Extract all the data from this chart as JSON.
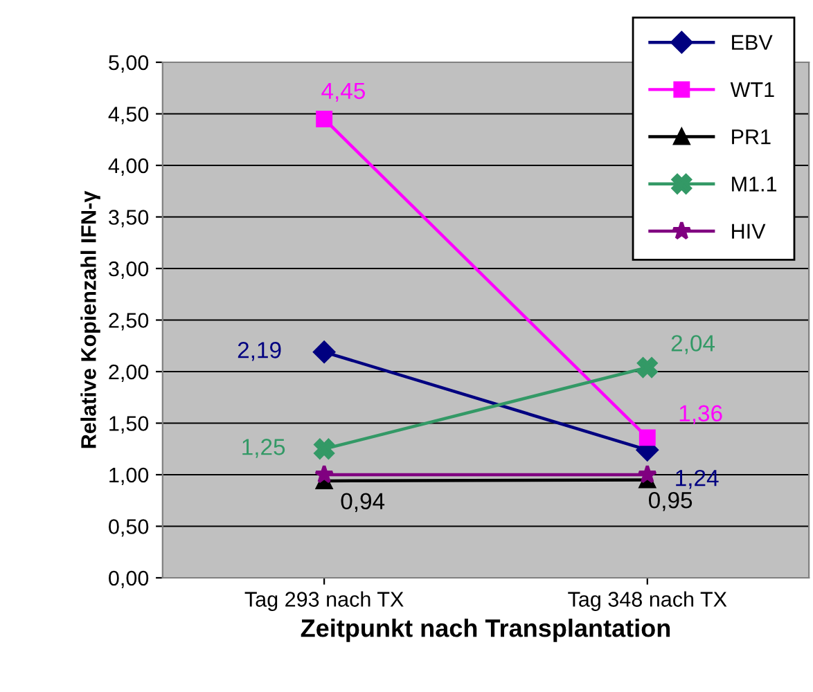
{
  "chart_data": {
    "type": "line",
    "xlabel": "Zeitpunkt nach Transplantation",
    "ylabel": "Relative Kopienzahl IFN-γ",
    "categories": [
      "Tag 293 nach TX",
      "Tag 348 nach TX"
    ],
    "series": [
      {
        "name": "EBV",
        "color": "#000080",
        "marker": "diamond",
        "values": [
          2.19,
          1.24
        ],
        "value_labels": [
          "2,19",
          "1,24"
        ]
      },
      {
        "name": "WT1",
        "color": "#ff00ff",
        "marker": "square",
        "values": [
          4.45,
          1.36
        ],
        "value_labels": [
          "4,45",
          "1,36"
        ]
      },
      {
        "name": "PR1",
        "color": "#000000",
        "marker": "triangle",
        "values": [
          0.94,
          0.95
        ],
        "value_labels": [
          "0,94",
          "0,95"
        ]
      },
      {
        "name": "M1.1",
        "color": "#339966",
        "marker": "cross",
        "values": [
          1.25,
          2.04
        ],
        "value_labels": [
          "1,25",
          "2,04"
        ]
      },
      {
        "name": "HIV",
        "color": "#800080",
        "marker": "star",
        "values": [
          1.0,
          1.0
        ]
      }
    ],
    "ylim": [
      0,
      5
    ],
    "yticks": [
      {
        "value": 0,
        "label": "0,00"
      },
      {
        "value": 0.5,
        "label": "0,50"
      },
      {
        "value": 1,
        "label": "1,00"
      },
      {
        "value": 1.5,
        "label": "1,50"
      },
      {
        "value": 2,
        "label": "2,00"
      },
      {
        "value": 2.5,
        "label": "2,50"
      },
      {
        "value": 3,
        "label": "3,00"
      },
      {
        "value": 3.5,
        "label": "3,50"
      },
      {
        "value": 4,
        "label": "4,00"
      },
      {
        "value": 4.5,
        "label": "4,50"
      },
      {
        "value": 5,
        "label": "5,00"
      }
    ],
    "grid": "y",
    "legend": "top right",
    "line_style": "solid"
  }
}
